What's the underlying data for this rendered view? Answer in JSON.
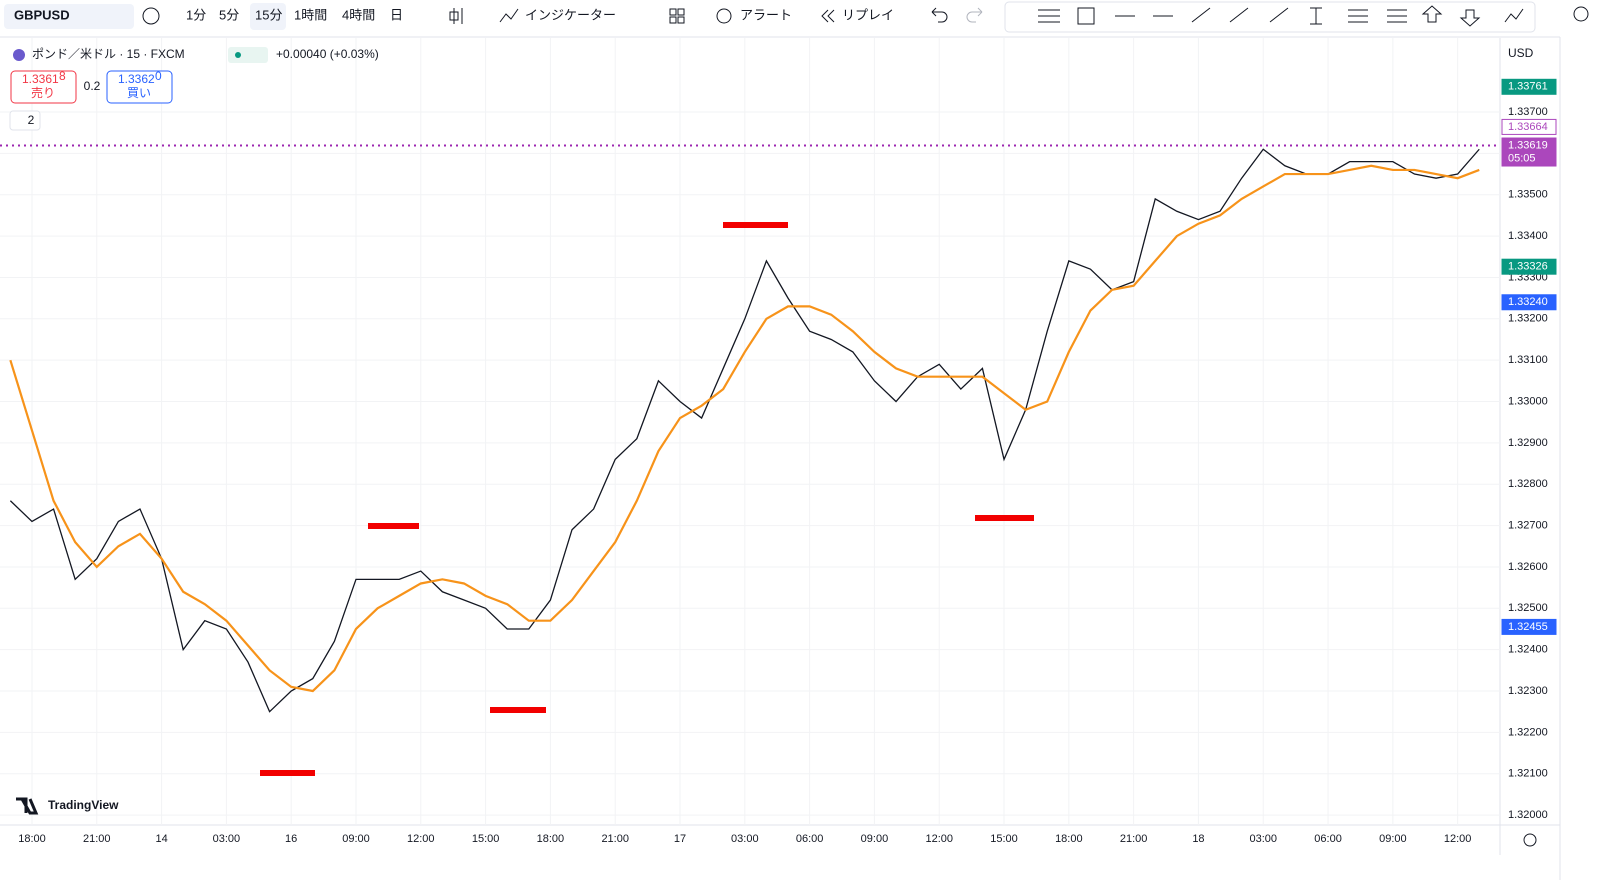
{
  "toolbar": {
    "symbol": "GBPUSD",
    "intervals": [
      "1分",
      "5分",
      "15分",
      "1時間",
      "4時間",
      "日"
    ],
    "indicators": "インジケーター",
    "alert": "アラート",
    "replay": "リプレイ"
  },
  "legend": {
    "title": "ポンド／米ドル · 15 · FXCM",
    "change": "+0.00040 (+0.03%)",
    "sell_price": "1.3361",
    "sell_price_small": "8",
    "sell": "売り",
    "spread": "0.2",
    "buy_price": "1.3362",
    "buy_price_small": "0",
    "buy": "買い",
    "indicator_count": "2"
  },
  "currency": "USD",
  "brand": "TradingView",
  "chart_data": {
    "type": "line",
    "x": [
      -1,
      0,
      1,
      2,
      3,
      4,
      5,
      6,
      7,
      8,
      9,
      10,
      11,
      12,
      13,
      14,
      15,
      16,
      17,
      18,
      19,
      20,
      21,
      22,
      23,
      24,
      25,
      26,
      27,
      28,
      29,
      30,
      31,
      32,
      33,
      34,
      35,
      36,
      37,
      38,
      39,
      40,
      41,
      42,
      43,
      44,
      45,
      46,
      47,
      48,
      49,
      50,
      51,
      52,
      53,
      54,
      55,
      56,
      57,
      58,
      59,
      60,
      61,
      62,
      63,
      64,
      65,
      66,
      67
    ],
    "series": [
      {
        "color": "#131722",
        "values": [
          1.3276,
          1.3271,
          1.3274,
          1.3257,
          1.3262,
          1.3271,
          1.3274,
          1.3262,
          1.324,
          1.3247,
          1.3245,
          1.3237,
          1.3225,
          1.323,
          1.3233,
          1.3242,
          1.3257,
          1.3257,
          1.3257,
          1.3259,
          1.3254,
          1.3252,
          1.325,
          1.3245,
          1.3245,
          1.3252,
          1.3269,
          1.3274,
          1.3286,
          1.3291,
          1.3305,
          1.33,
          1.3296,
          1.3308,
          1.332,
          1.3334,
          1.3325,
          1.3317,
          1.3315,
          1.3312,
          1.3305,
          1.33,
          1.3306,
          1.3309,
          1.3303,
          1.3308,
          1.3286,
          1.3298,
          1.3317,
          1.3334,
          1.3332,
          1.3327,
          1.3329,
          1.3349,
          1.3346,
          1.3344,
          1.3346,
          1.3354,
          1.3361,
          1.3357,
          1.3355,
          1.3355,
          1.3358,
          1.3358,
          1.3358,
          1.3355,
          1.3354,
          1.3355,
          1.3361
        ]
      },
      {
        "color": "#f7931a",
        "values": [
          1.331,
          1.3293,
          1.3276,
          1.3266,
          1.326,
          1.3265,
          1.3268,
          1.3262,
          1.3254,
          1.3251,
          1.3247,
          1.3241,
          1.3235,
          1.3231,
          1.323,
          1.3235,
          1.3245,
          1.325,
          1.3253,
          1.3256,
          1.3257,
          1.3256,
          1.3253,
          1.3251,
          1.3247,
          1.3247,
          1.3252,
          1.3259,
          1.3266,
          1.3276,
          1.3288,
          1.3296,
          1.3299,
          1.3303,
          1.3312,
          1.332,
          1.3323,
          1.3323,
          1.3321,
          1.3317,
          1.3312,
          1.3308,
          1.3306,
          1.3306,
          1.3306,
          1.3306,
          1.3302,
          1.3298,
          1.33,
          1.3312,
          1.3322,
          1.3327,
          1.3328,
          1.3334,
          1.334,
          1.3343,
          1.3345,
          1.3349,
          1.3352,
          1.3355,
          1.3355,
          1.3355,
          1.3356,
          1.3357,
          1.3356,
          1.3356,
          1.3355,
          1.3354,
          1.3356
        ]
      }
    ],
    "xlim": [
      -1.48,
      67.96
    ],
    "xticks": [
      {
        "value": 0,
        "label": "18:00"
      },
      {
        "value": 3,
        "label": "21:00"
      },
      {
        "value": 6,
        "label": "14"
      },
      {
        "value": 9,
        "label": "03:00"
      },
      {
        "value": 12,
        "label": "16"
      },
      {
        "value": 15,
        "label": "09:00"
      },
      {
        "value": 18,
        "label": "12:00"
      },
      {
        "value": 21,
        "label": "15:00"
      },
      {
        "value": 24,
        "label": "18:00"
      },
      {
        "value": 27,
        "label": "21:00"
      },
      {
        "value": 30,
        "label": "17"
      },
      {
        "value": 33,
        "label": "03:00"
      },
      {
        "value": 36,
        "label": "06:00"
      },
      {
        "value": 39,
        "label": "09:00"
      },
      {
        "value": 42,
        "label": "12:00"
      },
      {
        "value": 45,
        "label": "15:00"
      },
      {
        "value": 48,
        "label": "18:00"
      },
      {
        "value": 51,
        "label": "21:00"
      },
      {
        "value": 54,
        "label": "18"
      },
      {
        "value": 57,
        "label": "03:00"
      },
      {
        "value": 60,
        "label": "06:00"
      },
      {
        "value": 63,
        "label": "09:00"
      },
      {
        "value": 66,
        "label": "12:00"
      }
    ],
    "ylim": [
      1.31976,
      1.33879
    ],
    "yticks": [
      {
        "value": 1.32,
        "label": "1.32000"
      },
      {
        "value": 1.321,
        "label": "1.32100"
      },
      {
        "value": 1.322,
        "label": "1.32200"
      },
      {
        "value": 1.323,
        "label": "1.32300"
      },
      {
        "value": 1.324,
        "label": "1.32400"
      },
      {
        "value": 1.325,
        "label": "1.32500"
      },
      {
        "value": 1.326,
        "label": "1.32600"
      },
      {
        "value": 1.327,
        "label": "1.32700"
      },
      {
        "value": 1.328,
        "label": "1.32800"
      },
      {
        "value": 1.329,
        "label": "1.32900"
      },
      {
        "value": 1.33,
        "label": "1.33000"
      },
      {
        "value": 1.331,
        "label": "1.33100"
      },
      {
        "value": 1.332,
        "label": "1.33200"
      },
      {
        "value": 1.333,
        "label": "1.33300"
      },
      {
        "value": 1.334,
        "label": "1.33400"
      },
      {
        "value": 1.335,
        "label": "1.33500"
      },
      {
        "value": 1.336,
        "label": "1.33600"
      },
      {
        "value": 1.337,
        "label": "1.33700"
      }
    ],
    "grid": true,
    "price_labels": [
      {
        "value": 1.33761,
        "label": "1.33761",
        "color": "#089981"
      },
      {
        "value": 1.33664,
        "label": "1.33664",
        "color": "#ab47bc",
        "outline": true
      },
      {
        "value": 1.33619,
        "label": "1.33619",
        "color": "#ab47bc",
        "countdown": "05:05"
      },
      {
        "value": 1.33326,
        "label": "1.33326",
        "color": "#089981"
      },
      {
        "value": 1.3324,
        "label": "1.33240",
        "color": "#2962ff"
      },
      {
        "value": 1.32455,
        "label": "1.32455",
        "color": "#2962ff"
      }
    ],
    "current_line": {
      "value": 1.33619,
      "color": "#9c27b0"
    }
  }
}
